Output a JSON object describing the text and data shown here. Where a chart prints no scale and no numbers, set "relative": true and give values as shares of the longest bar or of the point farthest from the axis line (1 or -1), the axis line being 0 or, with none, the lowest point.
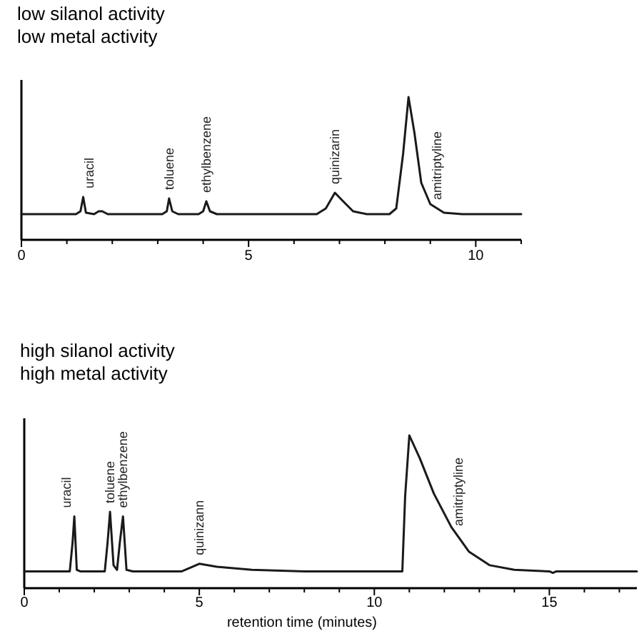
{
  "chart_data": [
    {
      "type": "line",
      "relative": true,
      "title": "low silanol activity",
      "subtitle": "low metal activity",
      "xlim": [
        0,
        11
      ],
      "xticks": [
        0,
        {
          "value": 1,
          "label": null
        },
        {
          "value": 2,
          "label": null
        },
        {
          "value": 3,
          "label": null
        },
        {
          "value": 4,
          "label": null
        },
        5,
        {
          "value": 6,
          "label": null
        },
        {
          "value": 7,
          "label": null
        },
        {
          "value": 8,
          "label": null
        },
        {
          "value": 9,
          "label": null
        },
        10,
        {
          "value": 11,
          "label": null
        }
      ],
      "series": [
        {
          "color": "#1a1a1a",
          "x": [
            0,
            1.2,
            1.3,
            1.36,
            1.42,
            1.6,
            1.7,
            1.78,
            1.9,
            3.1,
            3.2,
            3.25,
            3.32,
            3.45,
            3.9,
            4.0,
            4.07,
            4.15,
            4.3,
            6.5,
            6.7,
            6.9,
            7.05,
            7.3,
            7.6,
            8.1,
            8.25,
            8.4,
            8.52,
            8.65,
            8.8,
            9.0,
            9.3,
            9.7,
            11
          ],
          "values": [
            0.18,
            0.18,
            0.2,
            0.3,
            0.19,
            0.18,
            0.2,
            0.2,
            0.18,
            0.18,
            0.2,
            0.29,
            0.2,
            0.18,
            0.18,
            0.2,
            0.27,
            0.2,
            0.18,
            0.18,
            0.22,
            0.33,
            0.28,
            0.2,
            0.18,
            0.18,
            0.22,
            0.6,
            1.0,
            0.75,
            0.4,
            0.25,
            0.19,
            0.18,
            0.18
          ]
        }
      ],
      "annotations": [
        {
          "text": "uracil",
          "x": 1.5,
          "y": 0.3
        },
        {
          "text": "toluene",
          "x": 3.25,
          "y": 0.29
        },
        {
          "text": "ethylbenzene",
          "x": 4.07,
          "y": 0.27
        },
        {
          "text": "quinizarin",
          "x": 6.9,
          "y": 0.33
        },
        {
          "text": "amitriptyline",
          "x": 9.15,
          "y": 0.22
        }
      ]
    },
    {
      "type": "line",
      "relative": true,
      "title": "high silanol activity",
      "subtitle": "high metal activity",
      "xlabel": "retention time (minutes)",
      "xlim": [
        0,
        17.5
      ],
      "xticks": [
        0,
        {
          "value": 1,
          "label": null
        },
        {
          "value": 2,
          "label": null
        },
        {
          "value": 3,
          "label": null
        },
        {
          "value": 4,
          "label": null
        },
        5,
        {
          "value": 6,
          "label": null
        },
        {
          "value": 7,
          "label": null
        },
        {
          "value": 8,
          "label": null
        },
        {
          "value": 9,
          "label": null
        },
        10,
        {
          "value": 11,
          "label": null
        },
        {
          "value": 12,
          "label": null
        },
        {
          "value": 13,
          "label": null
        },
        {
          "value": 14,
          "label": null
        },
        15,
        {
          "value": 16,
          "label": null
        },
        {
          "value": 17,
          "label": null
        }
      ],
      "series": [
        {
          "color": "#1a1a1a",
          "x": [
            0,
            1.3,
            1.38,
            1.43,
            1.5,
            1.6,
            2.3,
            2.38,
            2.45,
            2.55,
            2.65,
            2.73,
            2.82,
            2.92,
            3.1,
            4.5,
            4.8,
            5.0,
            5.5,
            6.5,
            8,
            10.8,
            10.88,
            11.0,
            11.3,
            11.7,
            12.2,
            12.7,
            13.3,
            14,
            15,
            15.1,
            15.2,
            17.5
          ],
          "values": [
            0.11,
            0.11,
            0.3,
            0.47,
            0.12,
            0.11,
            0.11,
            0.3,
            0.5,
            0.15,
            0.12,
            0.3,
            0.47,
            0.12,
            0.11,
            0.11,
            0.14,
            0.16,
            0.14,
            0.12,
            0.11,
            0.11,
            0.6,
            1.0,
            0.85,
            0.62,
            0.4,
            0.24,
            0.15,
            0.12,
            0.11,
            0.1,
            0.11,
            0.11
          ]
        }
      ],
      "annotations": [
        {
          "text": "uracil",
          "x": 1.2,
          "y": 0.47
        },
        {
          "text": "toluene",
          "x": 2.45,
          "y": 0.5
        },
        {
          "text": "ethylbenzene",
          "x": 2.82,
          "y": 0.47
        },
        {
          "text": "quinizann",
          "x": 5.0,
          "y": 0.16
        },
        {
          "text": "amitriptyline",
          "x": 12.4,
          "y": 0.35
        }
      ]
    }
  ]
}
